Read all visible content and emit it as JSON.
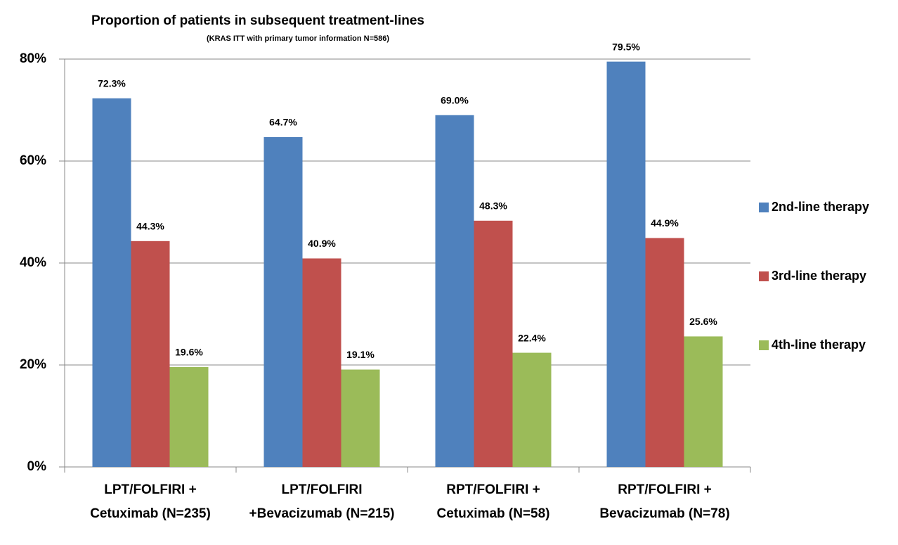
{
  "chart_data": {
    "type": "bar",
    "title": "Proportion of patients in subsequent treatment-lines",
    "subtitle": "(KRAS ITT with primary tumor information N=586)",
    "categories": [
      "LPT/FOLFIRI + Cetuximab (N=235)",
      "LPT/FOLFIRI +Bevacizumab (N=215)",
      "RPT/FOLFIRI + Cetuximab (N=58)",
      "RPT/FOLFIRI + Bevacizumab (N=78)"
    ],
    "series": [
      {
        "name": "2nd-line therapy",
        "color": "#4f81bd",
        "values": [
          72.3,
          64.7,
          69.0,
          79.5
        ],
        "value_labels": [
          "72.3%",
          "64.7%",
          "69.0%",
          "79.5%"
        ]
      },
      {
        "name": "3rd-line therapy",
        "color": "#c0504d",
        "values": [
          44.3,
          40.9,
          48.3,
          44.9
        ],
        "value_labels": [
          "44.3%",
          "40.9%",
          "48.3%",
          "44.9%"
        ]
      },
      {
        "name": "4th-line therapy",
        "color": "#9bbb59",
        "values": [
          19.6,
          19.1,
          22.4,
          25.6
        ],
        "value_labels": [
          "19.6%",
          "19.1%",
          "22.4%",
          "25.6%"
        ]
      }
    ],
    "ylim": [
      0,
      80
    ],
    "yticks": [
      {
        "value": 0,
        "label": "0%"
      },
      {
        "value": 20,
        "label": "20%"
      },
      {
        "value": 40,
        "label": "40%"
      },
      {
        "value": 60,
        "label": "60%"
      },
      {
        "value": 80,
        "label": "80%"
      }
    ],
    "grid": true,
    "legend": "right"
  }
}
